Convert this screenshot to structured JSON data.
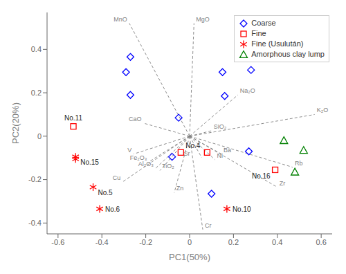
{
  "chart_data": {
    "type": "scatter",
    "xlabel": "PC1(50%)",
    "ylabel": "PC2(20%)",
    "xlim": [
      -0.65,
      0.65
    ],
    "ylim": [
      -0.45,
      0.57
    ],
    "xticks": [
      -0.6,
      -0.4,
      -0.2,
      0,
      0.2,
      0.4,
      0.6
    ],
    "yticks": [
      -0.4,
      -0.2,
      0,
      0.2,
      0.4
    ],
    "grid": false,
    "legend": "upper right",
    "series": [
      {
        "name": "Coarse",
        "color": "blue",
        "marker": "diamond",
        "x": [
          -0.27,
          -0.29,
          -0.27,
          -0.05,
          0.15,
          0.28,
          -0.08,
          0.16,
          0.1,
          0.27
        ],
        "y": [
          0.19,
          0.295,
          0.365,
          0.085,
          0.295,
          0.305,
          -0.095,
          0.185,
          -0.265,
          -0.07
        ]
      },
      {
        "name": "Fine",
        "color": "red",
        "marker": "square",
        "x": [
          -0.53,
          -0.04,
          0.08,
          0.39
        ],
        "y": [
          0.045,
          -0.075,
          -0.075,
          -0.155
        ],
        "labels": [
          "No.11",
          "No.4",
          null,
          "No.16"
        ]
      },
      {
        "name": "Fine (Usulután)",
        "color": "red",
        "marker": "star",
        "x": [
          -0.52,
          -0.44,
          -0.52,
          -0.41,
          0.17
        ],
        "y": [
          -0.095,
          -0.235,
          -0.105,
          -0.335,
          -0.335
        ],
        "labels": [
          "No.15",
          "No.5",
          null,
          "No.6",
          "No.10"
        ]
      },
      {
        "name": "Amorphous clay lump",
        "color": "green",
        "marker": "triangle",
        "x": [
          0.43,
          0.52,
          0.48
        ],
        "y": [
          -0.02,
          -0.065,
          -0.165
        ]
      }
    ],
    "arrows": {
      "color": "gray",
      "line_style": "dashed",
      "labels": [
        "MnO",
        "MgO",
        "CaO",
        "Na₂O",
        "SiO₂",
        "K₂O",
        "Ba",
        "Sr",
        "Ni",
        "Rb",
        "Zr",
        "V",
        "Fe₂O₃",
        "Al₂O₃",
        "TiO₂",
        "Cu",
        "Zn",
        "Cr"
      ],
      "x": [
        -0.275,
        0.02,
        -0.21,
        0.22,
        0.1,
        0.57,
        0.145,
        0.055,
        0.115,
        0.47,
        0.4,
        -0.255,
        -0.185,
        -0.155,
        -0.135,
        -0.305,
        -0.07,
        0.06
      ],
      "y": [
        0.52,
        0.52,
        0.06,
        0.19,
        0.025,
        0.1,
        -0.082,
        -0.098,
        -0.108,
        -0.143,
        -0.235,
        -0.082,
        -0.118,
        -0.148,
        -0.158,
        -0.21,
        -0.26,
        -0.43
      ]
    }
  }
}
